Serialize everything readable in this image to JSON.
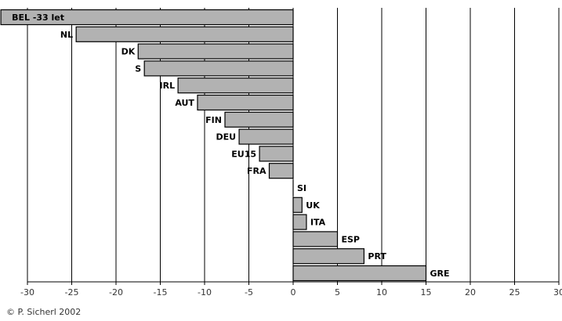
{
  "chart_data": {
    "type": "bar",
    "orientation": "horizontal",
    "categories": [
      "BEL -33 let",
      "NL",
      "DK",
      "S",
      "IRL",
      "AUT",
      "FIN",
      "DEU",
      "EU15",
      "FRA",
      "SI",
      "UK",
      "ITA",
      "ESP",
      "PRT",
      "GRE"
    ],
    "values": [
      -33,
      -24.5,
      -17.5,
      -16.8,
      -13,
      -10.8,
      -7.7,
      -6.1,
      -3.8,
      -2.7,
      0,
      1,
      1.5,
      5,
      8,
      15
    ],
    "xlim": [
      -30,
      30
    ],
    "x_ticks": [
      -30,
      -25,
      -20,
      -15,
      -10,
      -5,
      0,
      5,
      10,
      15,
      20,
      25,
      30
    ],
    "x_tick_labels": [
      "-30",
      "-25",
      "-20",
      "-15",
      "-10",
      "-5",
      "0",
      "5",
      "10",
      "15",
      "20",
      "25",
      "30"
    ],
    "grid": "vertical",
    "bar_color": "#b2b2b2",
    "title": "",
    "xlabel": "",
    "ylabel": ""
  },
  "footer": {
    "credit": "© P. Sicherl 2002"
  }
}
